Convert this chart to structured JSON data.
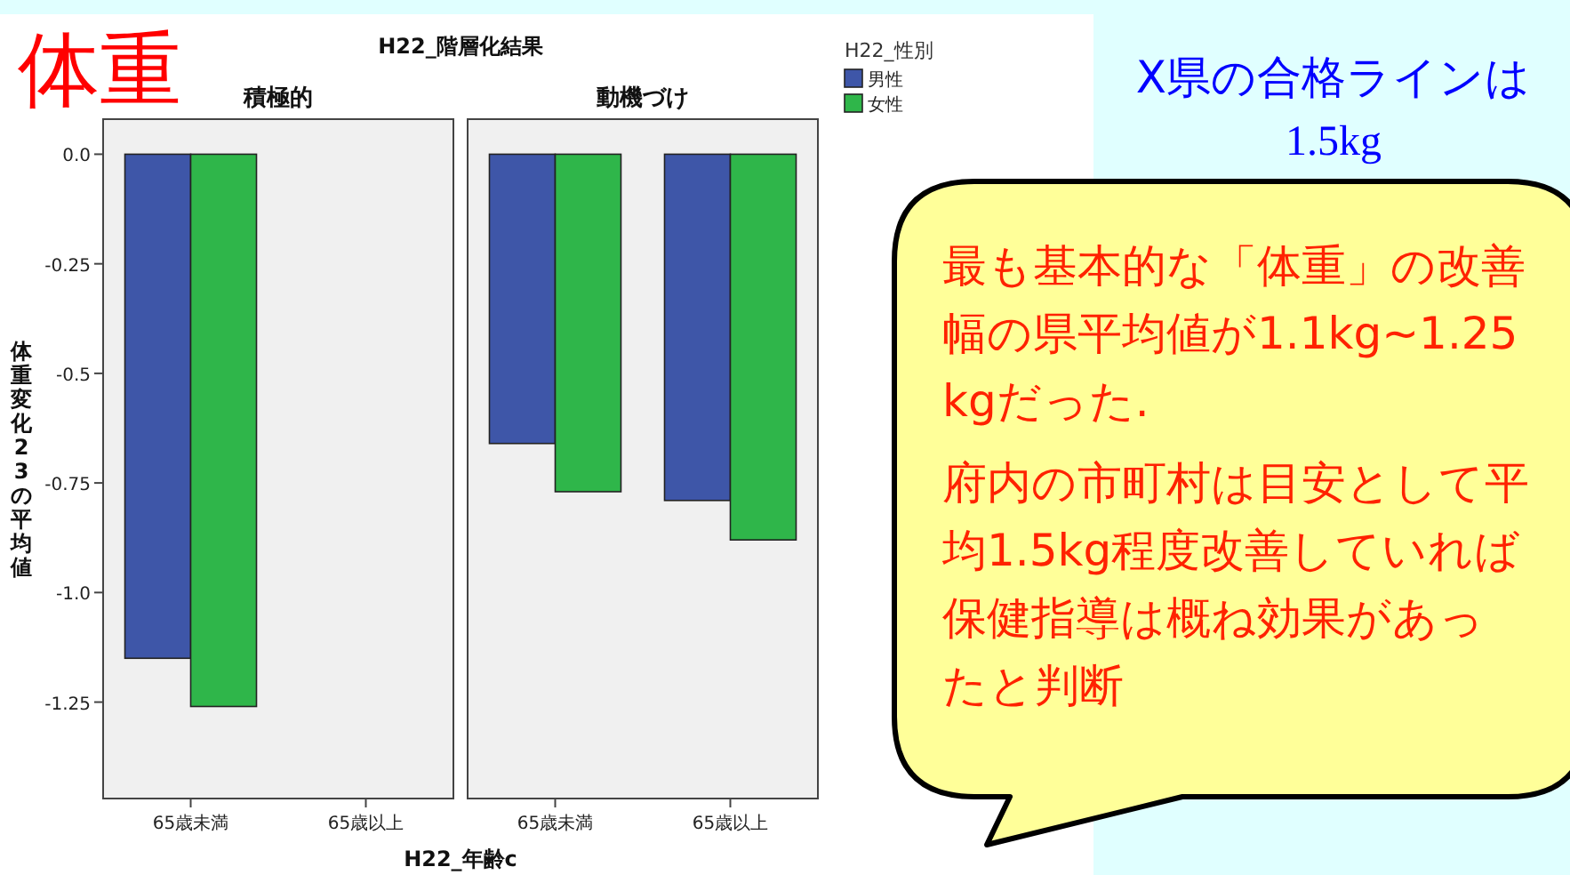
{
  "chart_data": [
    {
      "type": "bar",
      "title": "積極的",
      "subtitle": "H22_階層化結果",
      "xlabel": "H22_年齢c",
      "ylabel": "体重変化23の平均値",
      "categories": [
        "65歳未満",
        "65歳以上"
      ],
      "series": [
        {
          "color": "#3e56a8",
          "values": [
            -1.15,
            null
          ]
        },
        {
          "color": "#2fb64a",
          "values": [
            -1.26,
            null
          ]
        }
      ],
      "ylim": [
        -1.47,
        0.08
      ],
      "yticks": [
        {
          "value": 0,
          "label": "0.0"
        },
        -0.25,
        -0.5,
        -0.75,
        {
          "value": -1,
          "label": "-1.0"
        },
        -1.25
      ]
    },
    {
      "type": "bar",
      "title": "動機づけ",
      "legend_title": "H22_性別",
      "legend": "top right",
      "tick_labels": "x",
      "categories": [
        "65歳未満",
        "65歳以上"
      ],
      "series": [
        {
          "name": "男性",
          "color": "#3e56a8",
          "values": [
            -0.66,
            -0.79
          ]
        },
        {
          "name": "女性",
          "color": "#2fb64a",
          "values": [
            -0.77,
            -0.88
          ]
        }
      ],
      "ylim": [
        -1.47,
        0.08
      ]
    },
    {
      "type": "other",
      "title": "体重",
      "annotations": [
        "X県の合格ラインは",
        "1.5kg",
        "最も基本的な「体重」の改善幅の県平均値が1.1kg~1.25kgだった.",
        "府内の市町村は目安として平均1.5kg程度改善していれば保健指導は概ね効果があったと判断"
      ]
    }
  ]
}
